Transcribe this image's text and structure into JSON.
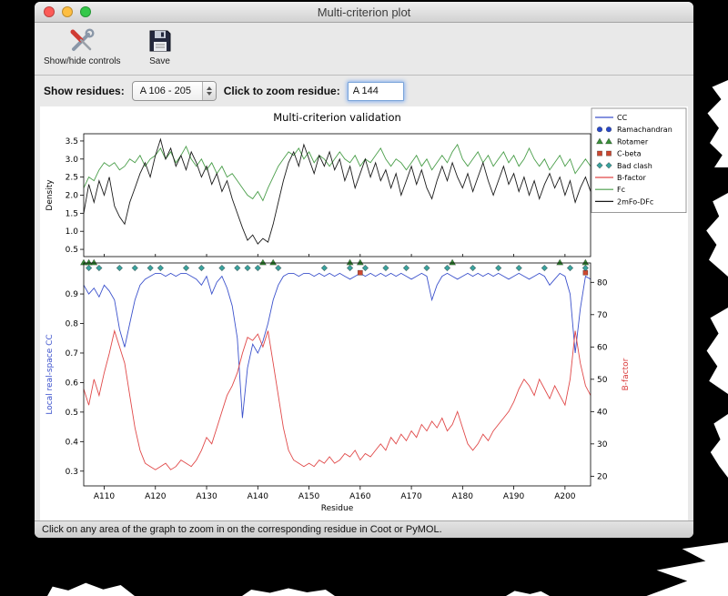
{
  "window": {
    "title": "Multi-criterion plot",
    "toolbar": {
      "show_hide_controls": "Show/hide controls",
      "save": "Save"
    },
    "controls": {
      "show_residues_label": "Show residues:",
      "residue_range": "A 106 - 205",
      "zoom_residue_label": "Click to zoom residue:",
      "zoom_residue_value": "A 144"
    },
    "status_bar": "Click on any area of the graph to zoom in on the corresponding residue in Coot or PyMOL."
  },
  "chart_data": {
    "type": "line",
    "title": "Multi-criterion validation",
    "xlabel": "Residue",
    "chain": "A",
    "x_range": [
      106,
      205
    ],
    "x_tick_residues": [
      110,
      120,
      130,
      140,
      150,
      160,
      170,
      180,
      190,
      200
    ],
    "x_tick_labels": [
      "A110",
      "A120",
      "A130",
      "A140",
      "A150",
      "A160",
      "A170",
      "A180",
      "A190",
      "A200"
    ],
    "top_plot": {
      "ylabel": "Density",
      "ylim": [
        0.3,
        3.7
      ],
      "yticks": [
        0.5,
        1.0,
        1.5,
        2.0,
        2.5,
        3.0,
        3.5
      ],
      "series": [
        {
          "name": "Fc",
          "color": "#4a9e4a",
          "values": [
            2.2,
            2.5,
            2.4,
            2.7,
            2.9,
            2.8,
            2.9,
            2.7,
            2.8,
            3.0,
            2.9,
            3.1,
            2.8,
            3.0,
            3.1,
            3.3,
            3.0,
            3.2,
            2.9,
            3.1,
            3.35,
            3.0,
            2.8,
            3.0,
            2.7,
            2.9,
            2.6,
            2.8,
            2.5,
            2.6,
            2.4,
            2.2,
            2.0,
            1.9,
            2.1,
            1.85,
            2.2,
            2.5,
            2.8,
            3.0,
            3.2,
            3.1,
            3.3,
            3.0,
            3.2,
            2.9,
            3.1,
            3.0,
            2.8,
            3.0,
            3.2,
            3.0,
            2.9,
            3.1,
            2.8,
            3.0,
            2.9,
            3.1,
            3.3,
            3.0,
            2.8,
            3.0,
            2.9,
            2.7,
            2.9,
            3.1,
            2.8,
            3.0,
            2.7,
            2.9,
            3.1,
            2.9,
            3.2,
            3.4,
            3.0,
            2.8,
            3.0,
            3.2,
            2.9,
            3.1,
            2.8,
            3.0,
            3.2,
            2.9,
            3.1,
            2.8,
            3.0,
            3.3,
            3.0,
            2.8,
            3.0,
            2.7,
            2.9,
            3.1,
            2.8,
            3.0,
            2.6,
            2.8,
            3.0,
            2.8
          ]
        },
        {
          "name": "2mFo-DFc",
          "color": "#1a1a1a",
          "values": [
            1.5,
            2.3,
            1.8,
            2.4,
            2.0,
            2.5,
            1.7,
            1.4,
            1.2,
            1.8,
            2.2,
            2.6,
            2.9,
            2.5,
            3.1,
            3.55,
            3.0,
            3.3,
            2.8,
            3.1,
            2.7,
            3.2,
            2.9,
            2.5,
            2.8,
            2.3,
            2.6,
            2.1,
            2.4,
            1.9,
            1.5,
            1.1,
            0.75,
            0.9,
            0.65,
            0.8,
            0.7,
            1.2,
            1.8,
            2.4,
            2.9,
            3.2,
            2.8,
            3.4,
            3.0,
            2.6,
            3.1,
            2.8,
            3.2,
            2.7,
            3.0,
            2.4,
            2.8,
            2.2,
            2.6,
            3.0,
            2.5,
            2.9,
            2.4,
            2.7,
            2.2,
            2.6,
            2.0,
            2.4,
            2.8,
            2.3,
            2.7,
            2.2,
            1.9,
            2.4,
            2.8,
            2.4,
            2.9,
            2.5,
            2.2,
            2.6,
            2.1,
            2.5,
            2.9,
            2.4,
            2.0,
            2.4,
            2.8,
            2.3,
            2.6,
            2.1,
            2.5,
            2.0,
            2.4,
            1.9,
            2.3,
            2.6,
            2.2,
            2.5,
            2.0,
            2.4,
            1.8,
            2.2,
            2.5,
            2.1
          ]
        }
      ]
    },
    "bottom_plot": {
      "ylabel_left": "Local real-space CC",
      "ylabel_left_color": "#3c52cc",
      "ylim_left": [
        0.25,
        1.005
      ],
      "yticks_left": [
        0.3,
        0.4,
        0.5,
        0.6,
        0.7,
        0.8,
        0.9
      ],
      "ylabel_right": "B-factor",
      "ylabel_right_color": "#d93a3a",
      "ylim_right": [
        17,
        86
      ],
      "yticks_right": [
        20,
        30,
        40,
        50,
        60,
        70,
        80
      ],
      "series": [
        {
          "name": "CC",
          "axis": "left",
          "color": "#3c52cc",
          "values": [
            0.93,
            0.9,
            0.92,
            0.89,
            0.93,
            0.91,
            0.88,
            0.78,
            0.72,
            0.8,
            0.88,
            0.93,
            0.95,
            0.96,
            0.97,
            0.97,
            0.96,
            0.97,
            0.96,
            0.97,
            0.97,
            0.96,
            0.95,
            0.93,
            0.96,
            0.9,
            0.94,
            0.96,
            0.92,
            0.86,
            0.75,
            0.48,
            0.65,
            0.73,
            0.7,
            0.74,
            0.8,
            0.88,
            0.93,
            0.96,
            0.97,
            0.97,
            0.96,
            0.97,
            0.97,
            0.96,
            0.97,
            0.96,
            0.97,
            0.96,
            0.97,
            0.96,
            0.95,
            0.96,
            0.97,
            0.96,
            0.97,
            0.96,
            0.97,
            0.96,
            0.97,
            0.96,
            0.97,
            0.96,
            0.95,
            0.96,
            0.97,
            0.96,
            0.88,
            0.93,
            0.96,
            0.97,
            0.96,
            0.95,
            0.96,
            0.97,
            0.96,
            0.97,
            0.96,
            0.97,
            0.96,
            0.97,
            0.96,
            0.95,
            0.96,
            0.97,
            0.96,
            0.95,
            0.96,
            0.97,
            0.96,
            0.93,
            0.95,
            0.97,
            0.96,
            0.9,
            0.7,
            0.85,
            0.96,
            0.95
          ]
        },
        {
          "name": "B-factor",
          "axis": "right",
          "color": "#e04848",
          "values": [
            47,
            42,
            50,
            45,
            52,
            58,
            65,
            60,
            55,
            45,
            35,
            28,
            24,
            23,
            22,
            23,
            24,
            22,
            23,
            25,
            24,
            23,
            25,
            28,
            32,
            30,
            35,
            40,
            45,
            48,
            52,
            58,
            63,
            62,
            64,
            60,
            65,
            55,
            45,
            35,
            28,
            25,
            24,
            23,
            24,
            23,
            25,
            24,
            26,
            24,
            25,
            27,
            26,
            28,
            25,
            27,
            26,
            28,
            30,
            28,
            32,
            30,
            33,
            31,
            34,
            32,
            36,
            34,
            37,
            35,
            38,
            34,
            36,
            40,
            35,
            30,
            28,
            30,
            33,
            31,
            34,
            36,
            38,
            40,
            43,
            47,
            50,
            48,
            45,
            50,
            47,
            44,
            48,
            45,
            42,
            50,
            65,
            55,
            48,
            45
          ]
        }
      ],
      "outlier_markers": [
        {
          "name": "Ramachandran",
          "shape": "circle",
          "color": "#2848c8",
          "residues": []
        },
        {
          "name": "Rotamer",
          "shape": "triangle",
          "color": "#3a8f3a",
          "residues": [
            106,
            107,
            108,
            141,
            143,
            158,
            160,
            178,
            199,
            204
          ]
        },
        {
          "name": "C-beta",
          "shape": "square",
          "color": "#cc4830",
          "residues": [
            160,
            204
          ]
        },
        {
          "name": "Bad clash",
          "shape": "diamond",
          "color": "#3aa39e",
          "residues": [
            107,
            109,
            113,
            116,
            119,
            121,
            126,
            129,
            133,
            136,
            138,
            140,
            144,
            153,
            158,
            161,
            165,
            169,
            173,
            177,
            182,
            187,
            191,
            196,
            201,
            204
          ]
        }
      ]
    },
    "legend": [
      {
        "label": "CC",
        "symbol": "line",
        "color": "#3c52cc"
      },
      {
        "label": "Ramachandran",
        "symbol": "circles",
        "color": "#2848c8"
      },
      {
        "label": "Rotamer",
        "symbol": "triangles",
        "color": "#3a8f3a"
      },
      {
        "label": "C-beta",
        "symbol": "squares",
        "color": "#cc4830"
      },
      {
        "label": "Bad clash",
        "symbol": "diamonds",
        "color": "#3aa39e"
      },
      {
        "label": "B-factor",
        "symbol": "line",
        "color": "#e04848"
      },
      {
        "label": "Fc",
        "symbol": "line",
        "color": "#4a9e4a"
      },
      {
        "label": "2mFo-DFc",
        "symbol": "line",
        "color": "#1a1a1a"
      }
    ]
  }
}
